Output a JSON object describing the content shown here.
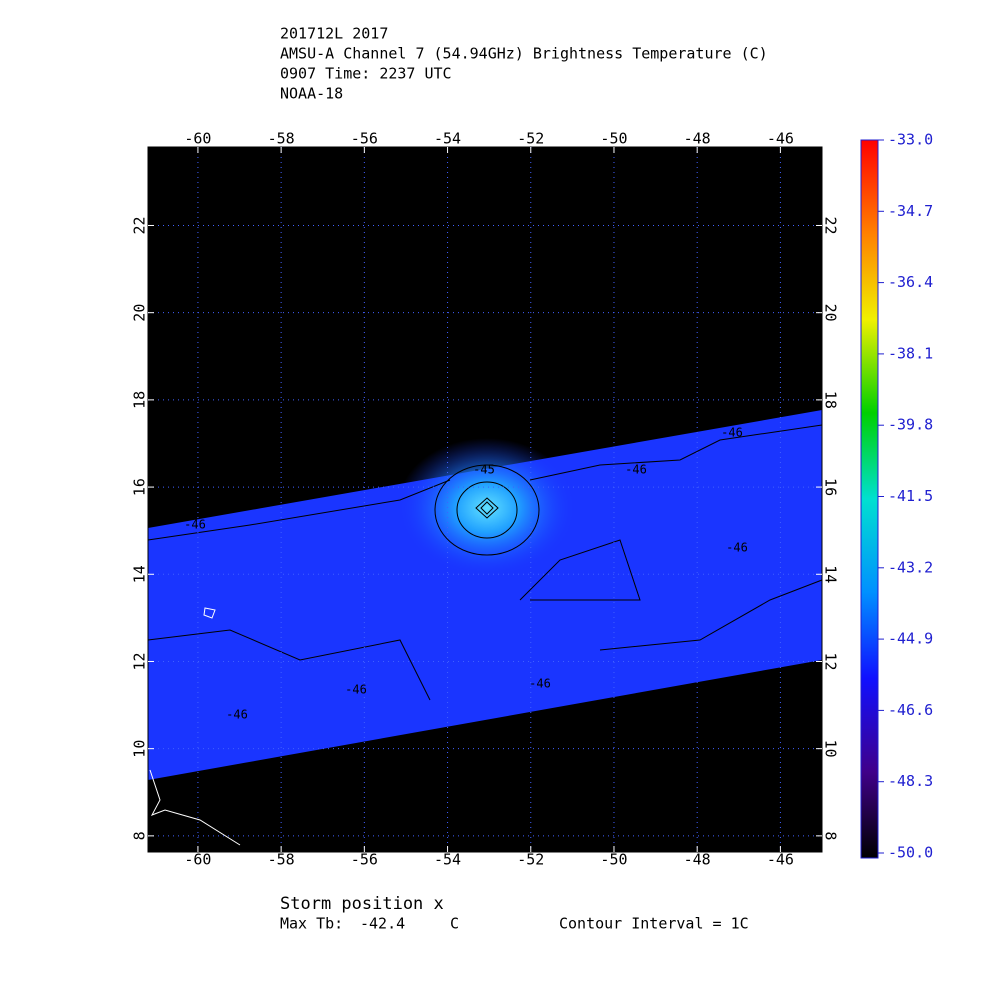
{
  "header": {
    "lines": [
      "201712L 2017",
      "AMSU-A Channel 7 (54.94GHz) Brightness Temperature (C)",
      "0907 Time: 2237 UTC",
      "NOAA-18"
    ]
  },
  "map": {
    "lonlim": [
      -61.2,
      -45.0
    ],
    "latlim": [
      7.63,
      23.8
    ],
    "lonticks": [
      -60,
      -58,
      -56,
      -54,
      -52,
      -50,
      -48,
      -46
    ],
    "latticks": [
      8,
      10,
      12,
      14,
      16,
      18,
      20,
      22
    ],
    "grid": true,
    "contour_labels": [
      "-45",
      "-46",
      "-46",
      "-46",
      "-46",
      "-46",
      "-46",
      "-46"
    ]
  },
  "colorbar": {
    "lim": [
      -50,
      -33
    ],
    "ticks": [
      {
        "value": -33,
        "label": "-33.0"
      },
      -34.7,
      -36.4,
      -38.1,
      -39.8,
      -41.5,
      -43.2,
      -44.9,
      -46.6,
      -48.3,
      {
        "value": -50,
        "label": "-50.0"
      }
    ]
  },
  "footer": {
    "storm_position": "Storm position x",
    "max_tb_label": "Max Tb:",
    "max_tb": -42.4,
    "max_tb_unit": "C",
    "contour_interval": "Contour Interval = 1C"
  }
}
